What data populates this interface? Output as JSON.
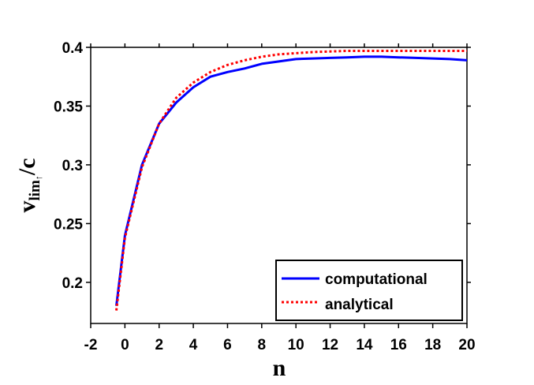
{
  "chart_data": {
    "type": "line",
    "xlabel": "n",
    "ylabel": {
      "main": "v",
      "subscript": "lim",
      "sub_subscript": "↑",
      "divider": "/",
      "denominator": "c"
    },
    "xlim": [
      -2,
      20
    ],
    "ylim": [
      0.165,
      0.4
    ],
    "xticks": [
      -2,
      0,
      2,
      4,
      6,
      8,
      10,
      12,
      14,
      16,
      18,
      20
    ],
    "xtick_labels": [
      "-2",
      "0",
      "2",
      "4",
      "6",
      "8",
      "10",
      "12",
      "14",
      "16",
      "18",
      "20"
    ],
    "yticks": [
      0.2,
      0.25,
      0.3,
      0.35,
      0.4
    ],
    "ytick_labels": [
      "0.2",
      "0.25",
      "0.3",
      "0.35",
      "0.4"
    ],
    "grid": false,
    "legend_position": "bottom-right",
    "series": [
      {
        "name": "computational",
        "color": "#0000ff",
        "style": "solid",
        "x": [
          -0.5,
          0,
          1,
          2,
          3,
          4,
          5,
          6,
          7,
          8,
          9,
          10,
          11,
          12,
          13,
          14,
          15,
          16,
          17,
          18,
          19,
          20
        ],
        "y": [
          0.18,
          0.24,
          0.3,
          0.335,
          0.353,
          0.366,
          0.375,
          0.379,
          0.382,
          0.386,
          0.388,
          0.39,
          0.3905,
          0.391,
          0.3915,
          0.392,
          0.392,
          0.3915,
          0.391,
          0.3905,
          0.39,
          0.389
        ]
      },
      {
        "name": "analytical",
        "color": "#ff0000",
        "style": "dotted",
        "x": [
          -0.5,
          0,
          1,
          2,
          3,
          4,
          5,
          6,
          7,
          8,
          9,
          10,
          11,
          12,
          13,
          14,
          15,
          16,
          17,
          18,
          19,
          20
        ],
        "y": [
          0.176,
          0.238,
          0.298,
          0.335,
          0.357,
          0.37,
          0.379,
          0.385,
          0.389,
          0.392,
          0.394,
          0.395,
          0.396,
          0.3965,
          0.397,
          0.397,
          0.397,
          0.397,
          0.397,
          0.397,
          0.397,
          0.397
        ]
      }
    ]
  }
}
